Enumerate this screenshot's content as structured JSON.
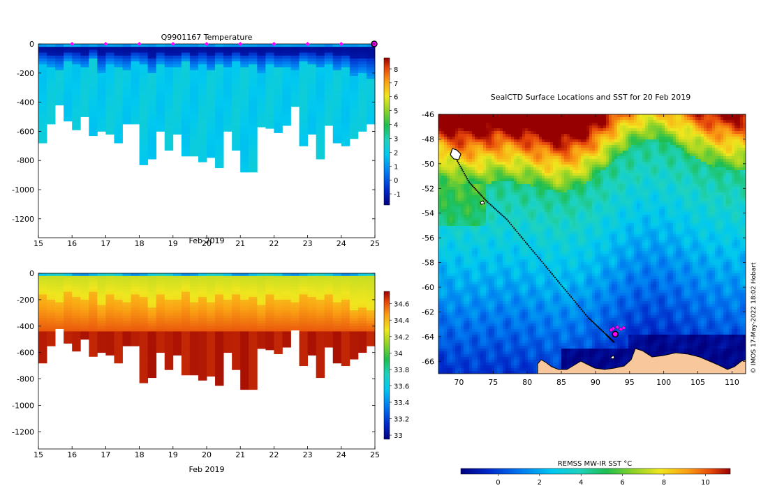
{
  "chart_data": [
    {
      "id": "temperature",
      "type": "heatmap",
      "title": "Q9901167  Temperature",
      "xlabel": "Feb 2019",
      "x_ticks": [
        "15",
        "16",
        "17",
        "18",
        "19",
        "20",
        "21",
        "22",
        "23",
        "24",
        "25"
      ],
      "x_range": [
        15,
        25
      ],
      "y_ticks": [
        "0",
        "-200",
        "-400",
        "-600",
        "-800",
        "-1000",
        "-1200"
      ],
      "y_range": [
        -1330,
        0
      ],
      "colorbar_ticks": [
        "8",
        "7",
        "6",
        "5",
        "4",
        "3",
        "2",
        "1",
        "0",
        "-1"
      ],
      "colorbar_range": [
        -1.8,
        8.8
      ],
      "marker_days": [
        16,
        17,
        18,
        19,
        20,
        21,
        22,
        23,
        24
      ],
      "end_marker_day": 25,
      "profile_max_depths": [
        680,
        550,
        420,
        530,
        590,
        500,
        630,
        600,
        620,
        680,
        550,
        550,
        830,
        790,
        600,
        730,
        620,
        770,
        770,
        810,
        780,
        850,
        600,
        730,
        880,
        880,
        570,
        580,
        610,
        560,
        430,
        700,
        620,
        790,
        560,
        680,
        700,
        650,
        600,
        550
      ],
      "surface_values": [
        1.0,
        1.2,
        0.8,
        1.5,
        1.4,
        1.0,
        1.3,
        0.9,
        1.2,
        1.1,
        0.8,
        1.3,
        1.2,
        1.0,
        1.4,
        1.2,
        1.1,
        1.2,
        1.0,
        1.3,
        0.9,
        1.4,
        1.1,
        1.0,
        1.3,
        1.2,
        1.0,
        0.9,
        1.2,
        1.3,
        1.1,
        1.0,
        1.2,
        1.1,
        0.8,
        1.3,
        1.1,
        1.0,
        1.2,
        1.0
      ],
      "thermocline_depths": [
        140,
        160,
        180,
        120,
        150,
        170,
        110,
        200,
        140,
        160,
        180,
        130,
        150,
        210,
        140,
        170,
        160,
        120,
        180,
        150,
        190,
        140,
        170,
        130,
        160,
        150,
        200,
        140,
        170,
        160,
        180,
        130,
        150,
        170,
        140,
        190,
        160,
        230,
        210,
        240
      ],
      "min_temp": -1.6,
      "deep_temp": 2.0,
      "mid_temp": 1.2
    },
    {
      "id": "salinity",
      "type": "heatmap",
      "title": "",
      "xlabel": "Feb 2019",
      "x_ticks": [
        "15",
        "16",
        "17",
        "18",
        "19",
        "20",
        "21",
        "22",
        "23",
        "24",
        "25"
      ],
      "x_range": [
        15,
        25
      ],
      "y_ticks": [
        "0",
        "-200",
        "-400",
        "-600",
        "-800",
        "-1000",
        "-1200"
      ],
      "y_range": [
        -1330,
        0
      ],
      "colorbar_ticks": [
        "34.6",
        "34.4",
        "34.2",
        "34",
        "33.8",
        "33.6",
        "33.4",
        "33.2",
        "33"
      ],
      "colorbar_range": [
        32.95,
        34.75
      ],
      "surface_salinity": 33.8,
      "deep_salinity": 34.7
    },
    {
      "id": "sst-map",
      "type": "heatmap",
      "title": "SealCTD Surface Locations and SST for 20 Feb 2019",
      "x_ticks": [
        "70",
        "75",
        "80",
        "85",
        "90",
        "95",
        "100",
        "105",
        "110"
      ],
      "x_range": [
        67,
        112
      ],
      "y_ticks": [
        "-46",
        "-48",
        "-50",
        "-52",
        "-54",
        "-56",
        "-58",
        "-60",
        "-62",
        "-64",
        "-66"
      ],
      "y_range": [
        -67,
        -46
      ],
      "colorbar_label": "REMSS MW-IR SST °C",
      "colorbar_ticks": [
        "0",
        "2",
        "4",
        "6",
        "8",
        "10"
      ],
      "colorbar_range": [
        -1.8,
        11.2
      ],
      "track_lon": [
        69.5,
        71.5,
        74,
        77,
        80,
        83,
        86,
        89,
        91.5,
        92.8
      ],
      "track_lat": [
        -49.5,
        -51.5,
        -53,
        -54.5,
        -56.5,
        -58.5,
        -60.5,
        -62.5,
        -63.8,
        -64.5
      ],
      "last_position": [
        92.9,
        -63.8
      ]
    }
  ],
  "credit": "© IMOS 17-May-2022 18:02 Hobart",
  "colors": {
    "marker": "#ff00ff",
    "land": "#f9c79c",
    "track": "#000000"
  }
}
